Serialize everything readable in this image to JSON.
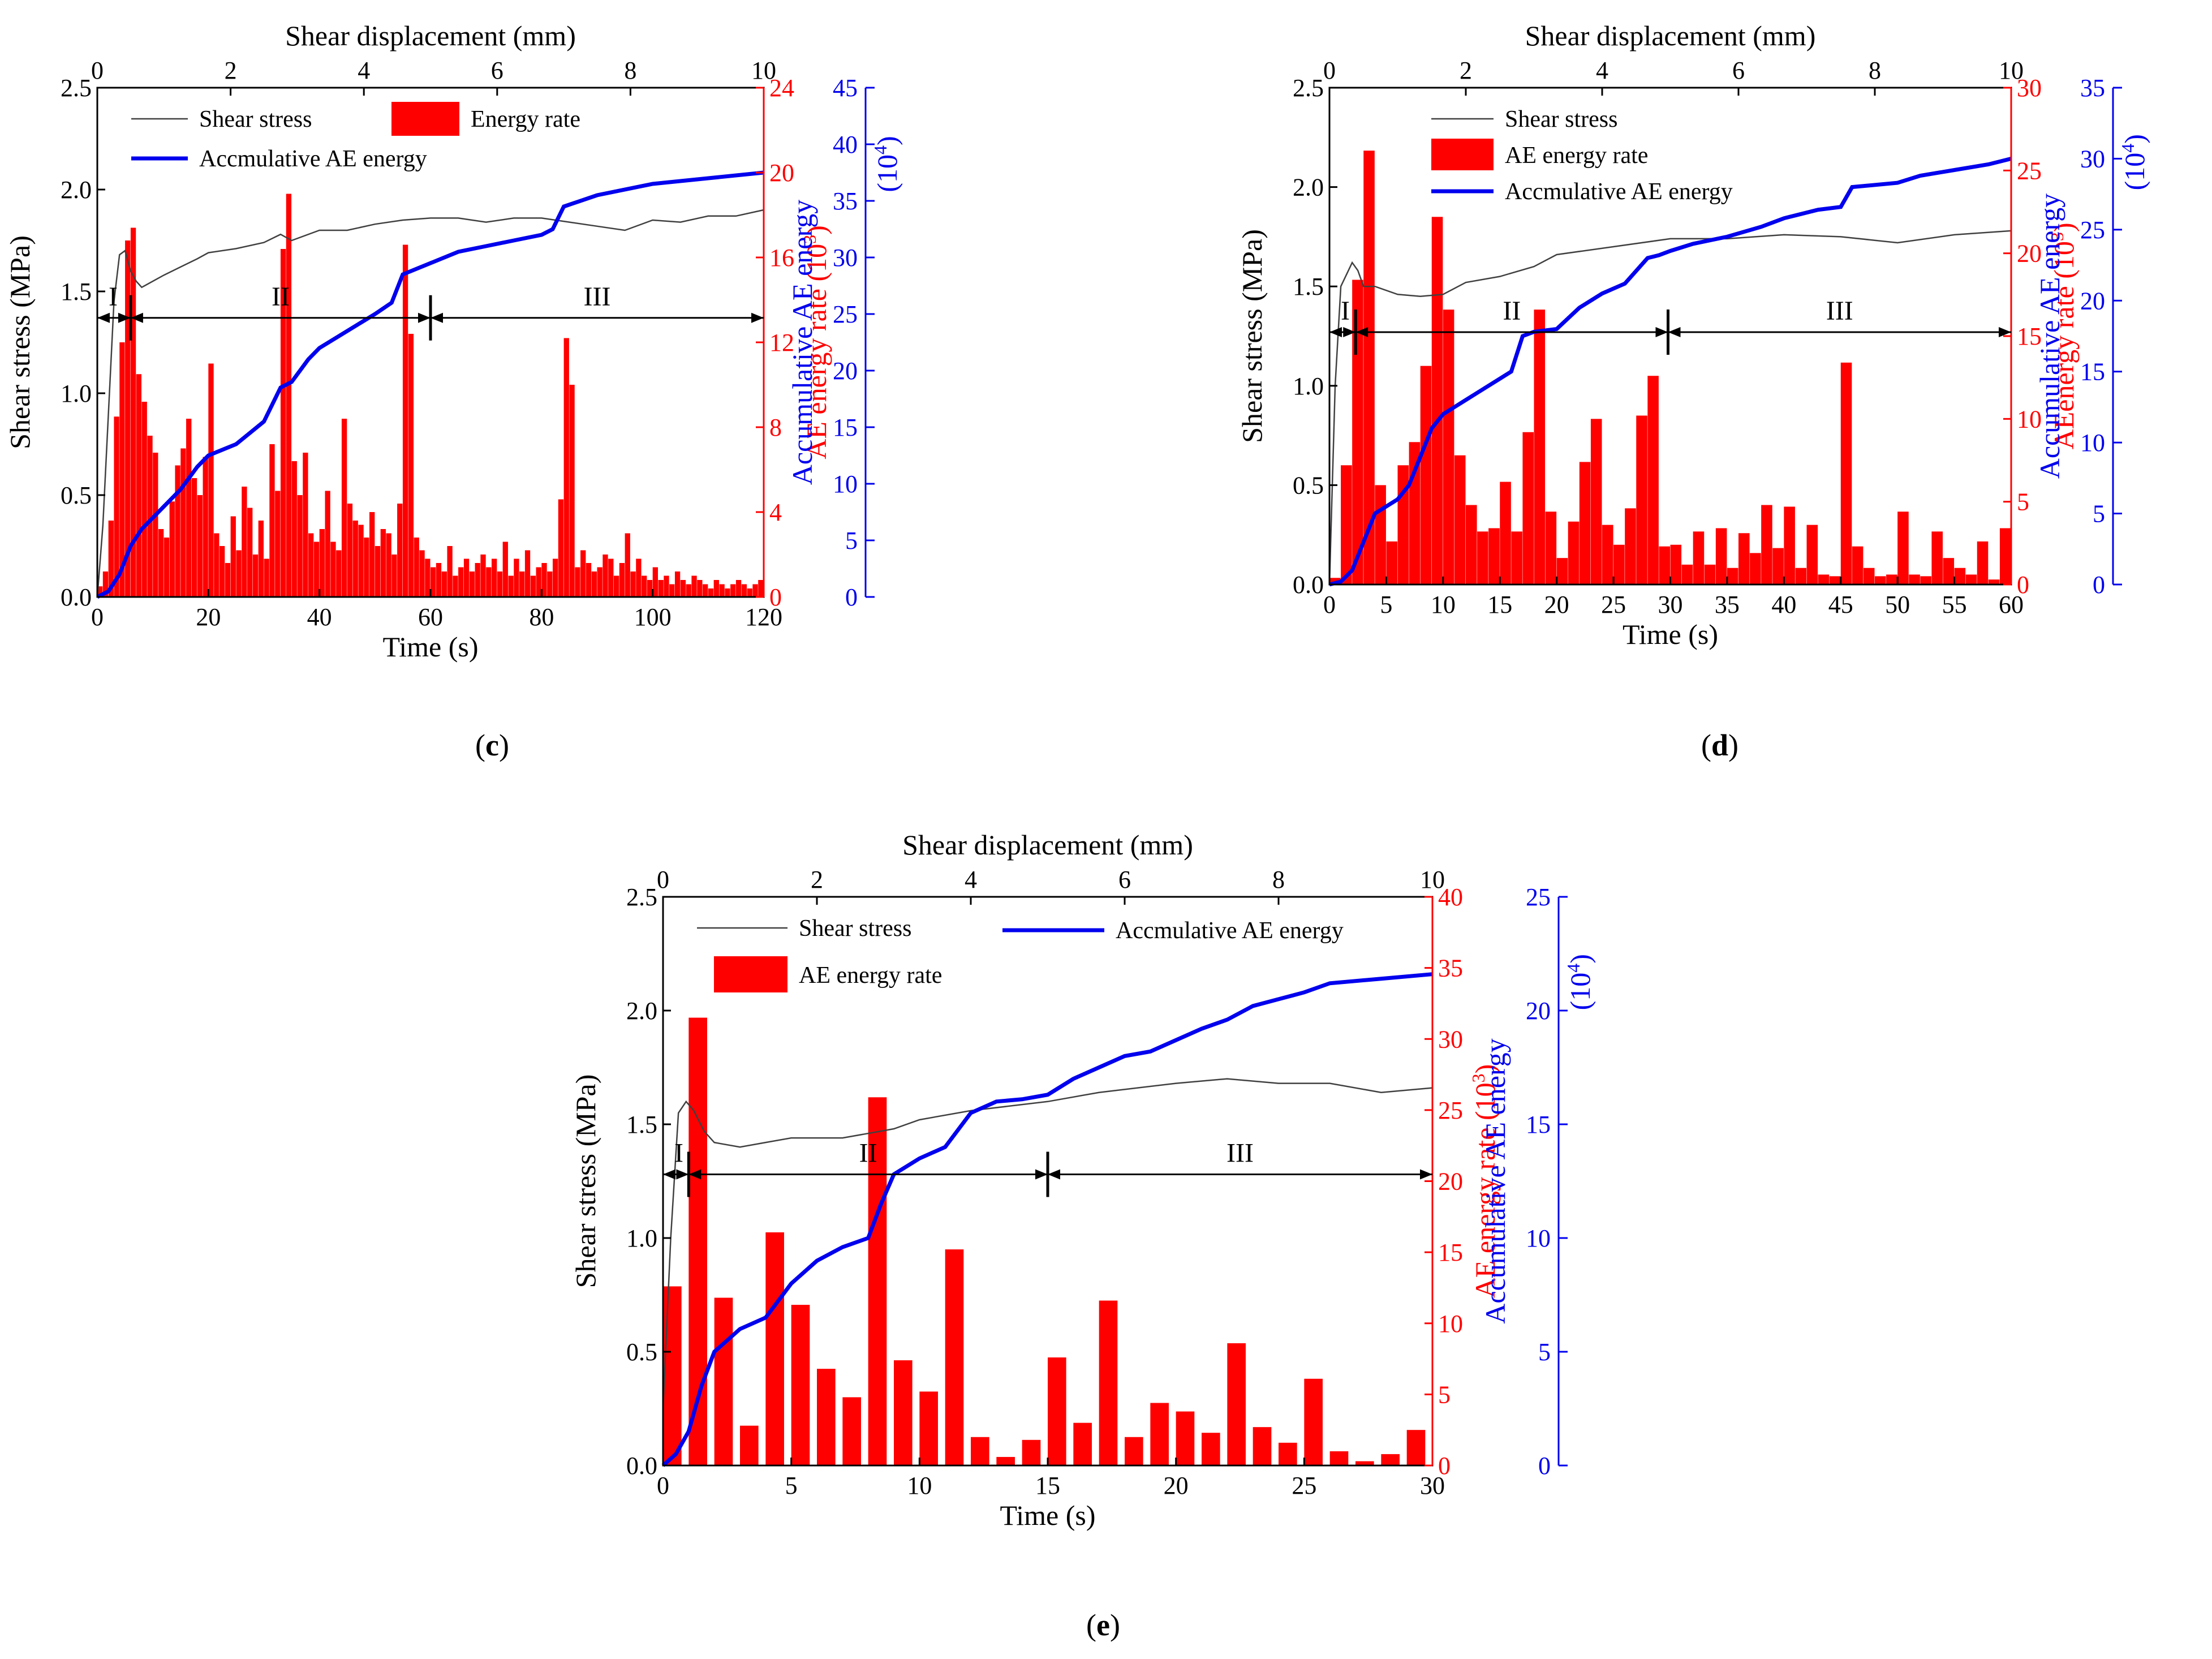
{
  "figure": {
    "panels": [
      "c",
      "d",
      "e"
    ],
    "panel_labels": {
      "c": "(c)",
      "d": "(d)",
      "e": "(e)"
    }
  },
  "colors": {
    "stress": "#404040",
    "rate": "#ff0000",
    "cum": "#0000ee",
    "axis": "#000000"
  },
  "chart_data": [
    {
      "id": "c",
      "type": "bar",
      "panel_label": "(c)",
      "xlabel": "Time (s)",
      "x2label": "Shear displacement (mm)",
      "ylabel": "Shear stress (MPa)",
      "y2label": "AE energy rate (10",
      "y2label_exp": "3",
      "y3label": "Accumulative AE energy",
      "y3label_unit": "(10",
      "y3label_exp": "4",
      "xlim": [
        0,
        120
      ],
      "x2lim": [
        0,
        10
      ],
      "ylim": [
        0,
        2.5
      ],
      "y2lim": [
        0,
        24
      ],
      "y3lim": [
        0,
        45
      ],
      "xticks": [
        0,
        20,
        40,
        60,
        80,
        100,
        120
      ],
      "x2ticks": [
        0,
        2,
        4,
        6,
        8,
        10
      ],
      "yticks": [
        "0.0",
        "0.5",
        "1.0",
        "1.5",
        "2.0",
        "2.5"
      ],
      "y2ticks": [
        0,
        4,
        8,
        12,
        16,
        20,
        24
      ],
      "y3ticks": [
        0,
        5,
        10,
        15,
        20,
        25,
        30,
        35,
        40,
        45
      ],
      "legend": [
        "Shear stress",
        "Energy rate",
        "Accmulative  AE energy"
      ],
      "zones": [
        {
          "label": "I",
          "x0": 0,
          "x1": 6
        },
        {
          "label": "II",
          "x0": 6,
          "x1": 60
        },
        {
          "label": "III",
          "x0": 60,
          "x1": 120
        }
      ],
      "zone_stress": 1.37,
      "stress_series": {
        "name": "Shear stress",
        "points": [
          [
            0,
            0
          ],
          [
            1,
            0.35
          ],
          [
            2,
            0.9
          ],
          [
            3,
            1.45
          ],
          [
            4,
            1.68
          ],
          [
            5,
            1.7
          ],
          [
            6,
            1.6
          ],
          [
            7,
            1.55
          ],
          [
            8,
            1.52
          ],
          [
            10,
            1.55
          ],
          [
            12,
            1.58
          ],
          [
            15,
            1.62
          ],
          [
            18,
            1.66
          ],
          [
            20,
            1.69
          ],
          [
            25,
            1.71
          ],
          [
            30,
            1.74
          ],
          [
            33,
            1.78
          ],
          [
            35,
            1.75
          ],
          [
            40,
            1.8
          ],
          [
            45,
            1.8
          ],
          [
            50,
            1.83
          ],
          [
            55,
            1.85
          ],
          [
            60,
            1.86
          ],
          [
            65,
            1.86
          ],
          [
            70,
            1.84
          ],
          [
            75,
            1.86
          ],
          [
            80,
            1.86
          ],
          [
            85,
            1.84
          ],
          [
            90,
            1.82
          ],
          [
            95,
            1.8
          ],
          [
            100,
            1.85
          ],
          [
            105,
            1.84
          ],
          [
            110,
            1.87
          ],
          [
            115,
            1.87
          ],
          [
            120,
            1.9
          ]
        ]
      },
      "rate_series": {
        "name": "Energy rate",
        "bar_width": 1,
        "values": [
          0.5,
          1.2,
          3.6,
          8.5,
          12.0,
          16.8,
          17.4,
          10.5,
          9.2,
          7.6,
          6.8,
          3.2,
          2.8,
          4.5,
          6.2,
          7.0,
          8.4,
          5.6,
          4.8,
          6.6,
          11.0,
          3.0,
          2.4,
          1.6,
          3.8,
          2.2,
          5.2,
          4.2,
          2.0,
          3.6,
          1.8,
          7.2,
          5.0,
          16.4,
          19.0,
          6.4,
          4.8,
          6.8,
          3.0,
          2.6,
          3.2,
          5.0,
          2.6,
          2.2,
          8.4,
          4.4,
          3.6,
          3.4,
          2.8,
          4.0,
          2.4,
          3.2,
          3.0,
          2.0,
          4.4,
          16.6,
          12.4,
          2.8,
          2.2,
          1.8,
          1.4,
          1.6,
          1.2,
          2.4,
          1.0,
          1.4,
          1.8,
          1.2,
          1.6,
          2.0,
          1.4,
          1.8,
          1.2,
          2.6,
          1.0,
          1.8,
          1.2,
          2.2,
          1.0,
          1.4,
          1.6,
          1.2,
          1.8,
          4.6,
          12.2,
          10.0,
          1.4,
          2.2,
          1.6,
          1.2,
          1.4,
          2.0,
          1.8,
          1.0,
          1.6,
          3.0,
          1.2,
          1.8,
          1.0,
          0.8,
          1.4,
          0.8,
          1.0,
          0.6,
          1.2,
          0.8,
          0.6,
          1.0,
          0.8,
          0.6,
          0.4,
          0.8,
          0.6,
          0.4,
          0.6,
          0.8,
          0.6,
          0.4,
          0.6,
          0.8
        ]
      },
      "cum_series": {
        "name": "Accmulative  AE energy",
        "points": [
          [
            0,
            0
          ],
          [
            2,
            0.5
          ],
          [
            4,
            2
          ],
          [
            6,
            4.5
          ],
          [
            8,
            6
          ],
          [
            10,
            7
          ],
          [
            12,
            8
          ],
          [
            15,
            9.5
          ],
          [
            18,
            11.5
          ],
          [
            20,
            12.5
          ],
          [
            25,
            13.5
          ],
          [
            30,
            15.5
          ],
          [
            33,
            18.5
          ],
          [
            35,
            19
          ],
          [
            38,
            21
          ],
          [
            40,
            22
          ],
          [
            45,
            23.5
          ],
          [
            50,
            25
          ],
          [
            53,
            26
          ],
          [
            55,
            28.5
          ],
          [
            60,
            29.5
          ],
          [
            65,
            30.5
          ],
          [
            70,
            31
          ],
          [
            75,
            31.5
          ],
          [
            80,
            32
          ],
          [
            82,
            32.5
          ],
          [
            84,
            34.5
          ],
          [
            90,
            35.5
          ],
          [
            100,
            36.5
          ],
          [
            110,
            37
          ],
          [
            120,
            37.5
          ]
        ]
      }
    },
    {
      "id": "d",
      "type": "bar",
      "panel_label": "(d)",
      "xlabel": "Time (s)",
      "x2label": "Shear displacement (mm)",
      "ylabel": "Shear stress (MPa)",
      "y2label": "AEenergy rate (10",
      "y2label_exp": "3",
      "y3label": "Accumulative AE energy",
      "y3label_unit": "(10",
      "y3label_exp": "4",
      "xlim": [
        0,
        60
      ],
      "x2lim": [
        0,
        10
      ],
      "ylim": [
        0,
        2.5
      ],
      "y2lim": [
        0,
        30
      ],
      "y3lim": [
        0,
        35
      ],
      "xticks": [
        0,
        5,
        10,
        15,
        20,
        25,
        30,
        35,
        40,
        45,
        50,
        55,
        60
      ],
      "x2ticks": [
        0,
        2,
        4,
        6,
        8,
        10
      ],
      "yticks": [
        "0.0",
        "0.5",
        "1.0",
        "1.5",
        "2.0",
        "2.5"
      ],
      "y2ticks": [
        0,
        5,
        10,
        15,
        20,
        25,
        30
      ],
      "y3ticks": [
        0,
        5,
        10,
        15,
        20,
        25,
        30,
        35
      ],
      "legend": [
        "Shear stress",
        "AE energy rate",
        "Accmulative  AE energy"
      ],
      "zones": [
        {
          "label": "I",
          "x0": 0,
          "x1": 2.3
        },
        {
          "label": "II",
          "x0": 2.3,
          "x1": 29.8
        },
        {
          "label": "III",
          "x0": 29.8,
          "x1": 60
        }
      ],
      "zone_stress": 1.27,
      "stress_series": {
        "name": "Shear stress",
        "points": [
          [
            0,
            0
          ],
          [
            0.5,
            1.0
          ],
          [
            1,
            1.5
          ],
          [
            2,
            1.62
          ],
          [
            2.5,
            1.58
          ],
          [
            3,
            1.5
          ],
          [
            4,
            1.5
          ],
          [
            6,
            1.46
          ],
          [
            8,
            1.45
          ],
          [
            10,
            1.46
          ],
          [
            12,
            1.52
          ],
          [
            15,
            1.55
          ],
          [
            18,
            1.6
          ],
          [
            20,
            1.66
          ],
          [
            25,
            1.7
          ],
          [
            30,
            1.74
          ],
          [
            35,
            1.74
          ],
          [
            40,
            1.76
          ],
          [
            45,
            1.75
          ],
          [
            50,
            1.72
          ],
          [
            55,
            1.76
          ],
          [
            60,
            1.78
          ]
        ]
      },
      "rate_series": {
        "name": "AE energy rate",
        "bar_width": 1,
        "values": [
          0.4,
          7.2,
          18.4,
          26.2,
          6.0,
          2.6,
          7.2,
          8.6,
          13.2,
          22.2,
          16.6,
          7.8,
          4.8,
          3.2,
          3.4,
          6.2,
          3.2,
          9.2,
          16.6,
          4.4,
          1.6,
          3.8,
          7.4,
          10.0,
          3.6,
          2.4,
          4.6,
          10.2,
          12.6,
          2.3,
          2.4,
          1.2,
          3.2,
          1.2,
          3.4,
          1.0,
          3.1,
          1.9,
          4.8,
          2.2,
          4.7,
          1.0,
          3.6,
          0.6,
          0.5,
          13.4,
          2.3,
          1.0,
          0.5,
          0.6,
          4.4,
          0.6,
          0.5,
          3.2,
          1.6,
          1.0,
          0.6,
          2.6,
          0.3,
          3.4
        ]
      },
      "cum_series": {
        "name": "Accmulative  AE energy",
        "points": [
          [
            0,
            0
          ],
          [
            1,
            0.2
          ],
          [
            2,
            1
          ],
          [
            3,
            3
          ],
          [
            4,
            5
          ],
          [
            5,
            5.5
          ],
          [
            6,
            6
          ],
          [
            7,
            7
          ],
          [
            8,
            9
          ],
          [
            9,
            11
          ],
          [
            10,
            12
          ],
          [
            11,
            12.5
          ],
          [
            12,
            13
          ],
          [
            13,
            13.5
          ],
          [
            15,
            14.5
          ],
          [
            16,
            15
          ],
          [
            17,
            17.5
          ],
          [
            18,
            17.8
          ],
          [
            20,
            18
          ],
          [
            22,
            19.5
          ],
          [
            24,
            20.5
          ],
          [
            26,
            21.2
          ],
          [
            28,
            23
          ],
          [
            29,
            23.2
          ],
          [
            30,
            23.5
          ],
          [
            32,
            24
          ],
          [
            35,
            24.5
          ],
          [
            38,
            25.2
          ],
          [
            40,
            25.8
          ],
          [
            43,
            26.4
          ],
          [
            45,
            26.6
          ],
          [
            46,
            28
          ],
          [
            50,
            28.3
          ],
          [
            52,
            28.8
          ],
          [
            55,
            29.2
          ],
          [
            58,
            29.6
          ],
          [
            60,
            30
          ]
        ]
      }
    },
    {
      "id": "e",
      "type": "bar",
      "panel_label": "(e)",
      "xlabel": "Time (s)",
      "x2label": "Shear displacement (mm)",
      "ylabel": "Shear stress (MPa)",
      "y2label": "AE energy rate (10",
      "y2label_exp": "3",
      "y3label": "Accumulative AE energy",
      "y3label_unit": "(10",
      "y3label_exp": "4",
      "xlim": [
        0,
        30
      ],
      "x2lim": [
        0,
        10
      ],
      "ylim": [
        0,
        2.5
      ],
      "y2lim": [
        0,
        40
      ],
      "y3lim": [
        0,
        25
      ],
      "xticks": [
        0,
        5,
        10,
        15,
        20,
        25,
        30
      ],
      "x2ticks": [
        0,
        2,
        4,
        6,
        8,
        10
      ],
      "yticks": [
        "0.0",
        "0.5",
        "1.0",
        "1.5",
        "2.0",
        "2.5"
      ],
      "y2ticks": [
        0,
        5,
        10,
        15,
        20,
        25,
        30,
        35,
        40
      ],
      "y3ticks": [
        0,
        5,
        10,
        15,
        20,
        25
      ],
      "legend": [
        "Shear stress",
        "AE energy rate",
        "Accmulative  AE energy"
      ],
      "zones": [
        {
          "label": "I",
          "x0": 0,
          "x1": 1
        },
        {
          "label": "II",
          "x0": 1,
          "x1": 15
        },
        {
          "label": "III",
          "x0": 15,
          "x1": 30
        }
      ],
      "zone_stress": 1.28,
      "stress_series": {
        "name": "Shear stress",
        "points": [
          [
            0,
            0.25
          ],
          [
            0.3,
            1.0
          ],
          [
            0.6,
            1.55
          ],
          [
            0.9,
            1.6
          ],
          [
            1.2,
            1.56
          ],
          [
            1.6,
            1.47
          ],
          [
            2,
            1.42
          ],
          [
            3,
            1.4
          ],
          [
            4,
            1.42
          ],
          [
            5,
            1.44
          ],
          [
            7,
            1.44
          ],
          [
            9,
            1.48
          ],
          [
            10,
            1.52
          ],
          [
            12,
            1.56
          ],
          [
            15,
            1.6
          ],
          [
            17,
            1.64
          ],
          [
            20,
            1.68
          ],
          [
            22,
            1.7
          ],
          [
            24,
            1.68
          ],
          [
            26,
            1.68
          ],
          [
            28,
            1.64
          ],
          [
            30,
            1.66
          ]
        ]
      },
      "rate_series": {
        "name": "AE energy rate",
        "bar_width": 0.72,
        "values": [
          12.6,
          31.5,
          11.8,
          2.8,
          16.4,
          11.3,
          6.8,
          4.8,
          25.9,
          7.4,
          5.2,
          15.2,
          2.0,
          0.6,
          1.8,
          7.6,
          3.0,
          11.6,
          2.0,
          4.4,
          3.8,
          2.3,
          8.6,
          2.7,
          1.6,
          6.1,
          1.0,
          0.3,
          0.8,
          2.5
        ]
      },
      "cum_series": {
        "name": "Accmulative  AE energy",
        "points": [
          [
            0,
            0
          ],
          [
            0.5,
            0.5
          ],
          [
            1,
            1.5
          ],
          [
            1.5,
            3.5
          ],
          [
            2,
            5
          ],
          [
            3,
            6
          ],
          [
            4,
            6.5
          ],
          [
            5,
            8
          ],
          [
            6,
            9
          ],
          [
            7,
            9.6
          ],
          [
            8,
            10
          ],
          [
            8.5,
            11.5
          ],
          [
            9,
            12.8
          ],
          [
            10,
            13.5
          ],
          [
            11,
            14
          ],
          [
            12,
            15.5
          ],
          [
            13,
            16
          ],
          [
            14,
            16.1
          ],
          [
            15,
            16.3
          ],
          [
            16,
            17
          ],
          [
            17,
            17.5
          ],
          [
            18,
            18
          ],
          [
            19,
            18.2
          ],
          [
            20,
            18.7
          ],
          [
            21,
            19.2
          ],
          [
            22,
            19.6
          ],
          [
            23,
            20.2
          ],
          [
            24,
            20.5
          ],
          [
            25,
            20.8
          ],
          [
            26,
            21.2
          ],
          [
            28,
            21.4
          ],
          [
            30,
            21.6
          ]
        ]
      }
    }
  ]
}
